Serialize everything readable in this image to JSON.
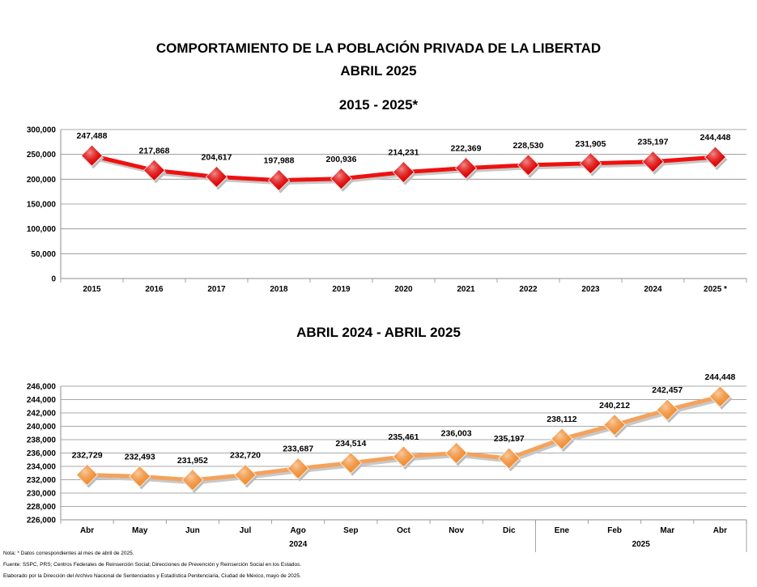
{
  "page": {
    "title_line1": "COMPORTAMIENTO DE LA POBLACIÓN PRIVADA DE LA LIBERTAD",
    "title_line2": "ABRIL 2025",
    "notes": [
      "Nota: * Datos correspondientes al mes de abril de 2025.",
      "Fuente: SSPC, PRS; Centros Federales de Reinserción Social; Direcciones de Prevención y Reinserción Social en los Estados.",
      "Elaborado por la Dirección del Archivo Nacional de Sentenciados y Estadística Penitenciaria, Ciudad de México, mayo de 2025."
    ]
  },
  "chart_data": [
    {
      "type": "line",
      "title": "2015 - 2025*",
      "categories": [
        "2015",
        "2016",
        "2017",
        "2018",
        "2019",
        "2020",
        "2021",
        "2022",
        "2023",
        "2024",
        "2025 *"
      ],
      "values": [
        247488,
        217868,
        204617,
        197988,
        200936,
        214231,
        222369,
        228530,
        231905,
        235197,
        244448
      ],
      "labels": [
        "247,488",
        "217,868",
        "204,617",
        "197,988",
        "200,936",
        "214,231",
        "222,369",
        "228,530",
        "231,905",
        "235,197",
        "244,448"
      ],
      "yticks": [
        "300,000",
        "250,000",
        "200,000",
        "150,000",
        "100,000",
        "50,000",
        "0"
      ],
      "ylim": [
        0,
        300000
      ],
      "color": "#ee1111",
      "marker_color": "#dd0000",
      "grid": true
    },
    {
      "type": "line",
      "title": "ABRIL 2024 - ABRIL 2025",
      "categories": [
        "Abr",
        "May",
        "Jun",
        "Jul",
        "Ago",
        "Sep",
        "Oct",
        "Nov",
        "Dic",
        "Ene",
        "Feb",
        "Mar",
        "Abr"
      ],
      "groups": [
        {
          "label": "2024",
          "count": 9
        },
        {
          "label": "2025",
          "count": 4
        }
      ],
      "values": [
        232729,
        232493,
        231952,
        232720,
        233687,
        234514,
        235461,
        236003,
        235197,
        238112,
        240212,
        242457,
        244448
      ],
      "labels": [
        "232,729",
        "232,493",
        "231,952",
        "232,720",
        "233,687",
        "234,514",
        "235,461",
        "236,003",
        "235,197",
        "238,112",
        "240,212",
        "242,457",
        "244,448"
      ],
      "yticks": [
        "246,000",
        "244,000",
        "242,000",
        "240,000",
        "238,000",
        "236,000",
        "234,000",
        "232,000",
        "230,000",
        "228,000",
        "226,000"
      ],
      "ylim": [
        226000,
        246000
      ],
      "color": "#f4a25c",
      "marker_color": "#f08c30",
      "grid": true
    }
  ]
}
